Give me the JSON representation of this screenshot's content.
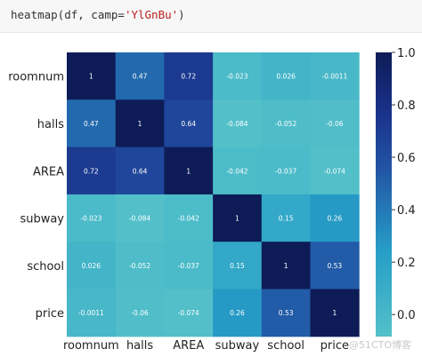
{
  "code": {
    "prefix": "heatmap(df, camp=",
    "arg": "'YlGnBu'",
    "suffix": ")"
  },
  "chart_data": {
    "type": "heatmap",
    "title": "",
    "xlabel": "",
    "ylabel": "",
    "rows": [
      "roomnum",
      "halls",
      "AREA",
      "subway",
      "school",
      "price"
    ],
    "cols": [
      "roomnum",
      "halls",
      "AREA",
      "subway",
      "school",
      "price"
    ],
    "values": [
      [
        1,
        0.47,
        0.72,
        -0.023,
        0.026,
        -0.0011
      ],
      [
        0.47,
        1,
        0.64,
        -0.084,
        -0.052,
        -0.06
      ],
      [
        0.72,
        0.64,
        1,
        -0.042,
        -0.037,
        -0.074
      ],
      [
        -0.023,
        -0.084,
        -0.042,
        1,
        0.15,
        0.26
      ],
      [
        0.026,
        -0.052,
        -0.037,
        0.15,
        1,
        0.53
      ],
      [
        -0.0011,
        -0.06,
        -0.074,
        0.26,
        0.53,
        1
      ]
    ],
    "cell_labels": [
      [
        "1",
        "0.47",
        "0.72",
        "-0.023",
        "0.026",
        "-0.0011"
      ],
      [
        "0.47",
        "1",
        "0.64",
        "-0.084",
        "-0.052",
        "-0.06"
      ],
      [
        "0.72",
        "0.64",
        "1",
        "-0.042",
        "-0.037",
        "-0.074"
      ],
      [
        "-0.023",
        "-0.084",
        "-0.042",
        "1",
        "0.15",
        "0.26"
      ],
      [
        "0.026",
        "-0.052",
        "-0.037",
        "0.15",
        "1",
        "0.53"
      ],
      [
        "-0.0011",
        "-0.06",
        "-0.074",
        "0.26",
        "0.53",
        "1"
      ]
    ],
    "colorbar": {
      "range": [
        -0.084,
        1
      ],
      "ticks": [
        0.0,
        0.2,
        0.4,
        0.6,
        0.8,
        1.0
      ],
      "tick_labels": [
        "0.0",
        "0.2",
        "0.4",
        "0.6",
        "0.8",
        "1.0"
      ]
    },
    "colormap": "YlGnBu"
  },
  "watermark": "@51CTO博客"
}
